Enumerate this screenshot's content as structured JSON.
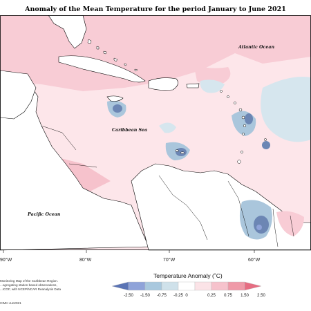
{
  "title": "Anomaly of the Mean Temperature for the period January to June 2021",
  "regions": {
    "atlantic_ocean": "Atlantic Ocean",
    "caribbean_sea": "Caribbean Sea",
    "pacific_ocean": "Pacific Ocean"
  },
  "longitude_ticks": [
    "90°W",
    "80°W",
    "70°W",
    "60°W"
  ],
  "legend": {
    "title": "Temperature Anomaly (˚C)",
    "ticks": [
      "-2.50",
      "-1.50",
      "-0.75",
      "-0.25",
      "0",
      "0.25",
      "0.75",
      "1.50",
      "2.50"
    ],
    "colors": [
      "#5b74b5",
      "#8fa3d9",
      "#a9c8de",
      "#cfe1ea",
      "#ffffff",
      "#fbe3e7",
      "#f6c2cc",
      "#ef9aa8",
      "#e66d82"
    ]
  },
  "footnotes": [
    "Monitoring Map of the Caribbean Region.",
    "...ogregating station based observations,",
    "...ICOF, with NCEP/NCAR Reanalysis Data",
    "CIMH Jun2021"
  ],
  "colors": {
    "warm_light": "#fde6ea",
    "warm": "#f8ccd5",
    "cool_light": "#d6e6ee",
    "cool": "#aac6dc",
    "cool_dark": "#6c86b4",
    "land": "#ffffff",
    "coast": "#000000"
  }
}
